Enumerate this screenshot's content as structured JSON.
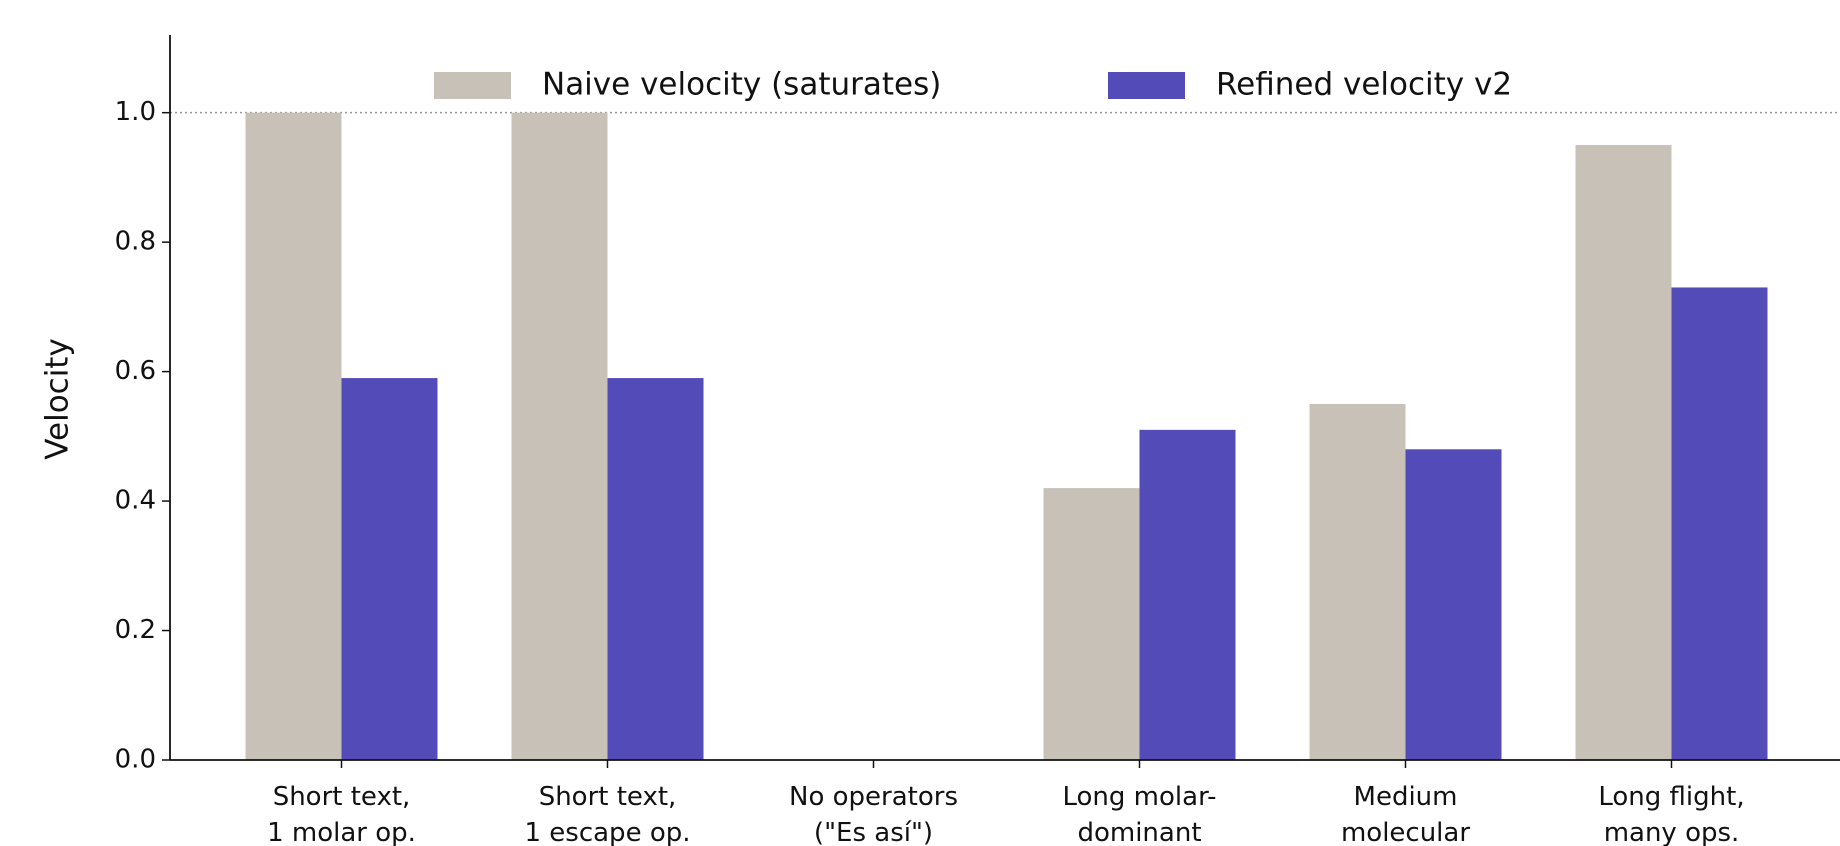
{
  "chart_data": {
    "type": "bar",
    "ylabel": "Velocity",
    "categories": [
      "Short text,\n1 molar op.",
      "Short text,\n1 escape op.",
      "No operators\n(\"Es así\")",
      "Long molar-\ndominant",
      "Medium\nmolecular",
      "Long flight,\nmany ops."
    ],
    "series": [
      {
        "name": "Naive velocity (saturates)",
        "color": "#c8c1b8",
        "values": [
          1.0,
          1.0,
          0,
          0.42,
          0.55,
          0.95
        ]
      },
      {
        "name": "Refined velocity v2",
        "color": "#534bb8",
        "values": [
          0.59,
          0.59,
          0,
          0.51,
          0.48,
          0.73
        ]
      }
    ],
    "reference_line": 1.0,
    "ylim": [
      0,
      1.12
    ],
    "yticks": [
      {
        "value": 0,
        "label": "0.0"
      },
      0.2,
      0.4,
      0.6,
      0.8,
      {
        "value": 1,
        "label": "1.0"
      }
    ],
    "legend": "top"
  }
}
